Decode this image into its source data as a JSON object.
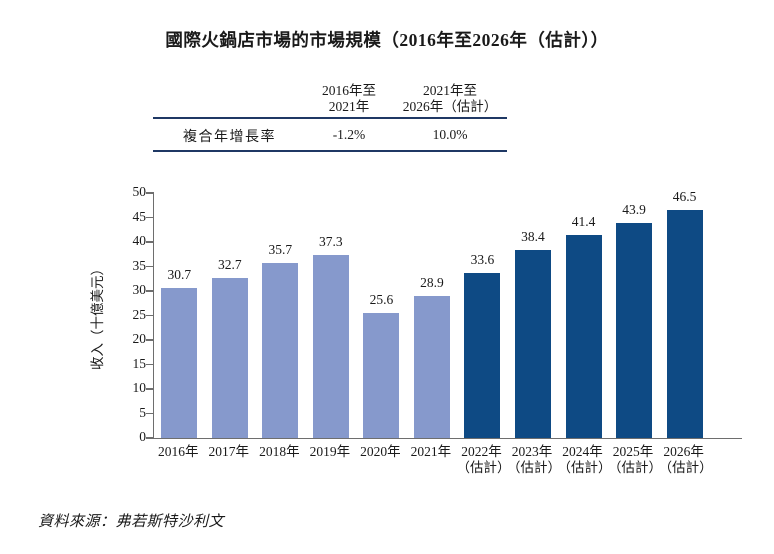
{
  "page": {
    "title": "國際火鍋店市場的市場規模（2016年至2026年（估計））",
    "source": "資料來源：弗若斯特沙利文"
  },
  "cagr_table": {
    "header_col1": "2016年至\n2021年",
    "header_col2": "2021年至\n2026年（估計）",
    "row_label": "複合年增長率",
    "value_col1": "-1.2%",
    "value_col2": "10.0%"
  },
  "chart_data": {
    "type": "bar",
    "categories": [
      "2016年",
      "2017年",
      "2018年",
      "2019年",
      "2020年",
      "2021年",
      "2022年",
      "2023年",
      "2024年",
      "2025年",
      "2026年"
    ],
    "category_sublabels": [
      "",
      "",
      "",
      "",
      "",
      "",
      "（估計）",
      "（估計）",
      "（估計）",
      "（估計）",
      "（估計）"
    ],
    "values": [
      30.7,
      32.7,
      35.7,
      37.3,
      25.6,
      28.9,
      33.6,
      38.4,
      41.4,
      43.9,
      46.5
    ],
    "bar_colors": [
      "#8699CC",
      "#8699CC",
      "#8699CC",
      "#8699CC",
      "#8699CC",
      "#8699CC",
      "#0E4A84",
      "#0E4A84",
      "#0E4A84",
      "#0E4A84",
      "#0E4A84"
    ],
    "ylabel": "收入（十億美元）",
    "ylim": [
      0,
      50
    ],
    "yticks": [
      0,
      5,
      10,
      15,
      20,
      25,
      30,
      35,
      40,
      45,
      50
    ],
    "grid": false,
    "legend": false,
    "colors": {
      "historical": "#8699CC",
      "estimated": "#0E4A84"
    }
  },
  "style_colors": {
    "table_rule": "#1F3864",
    "axis": "#6E6E6E"
  }
}
